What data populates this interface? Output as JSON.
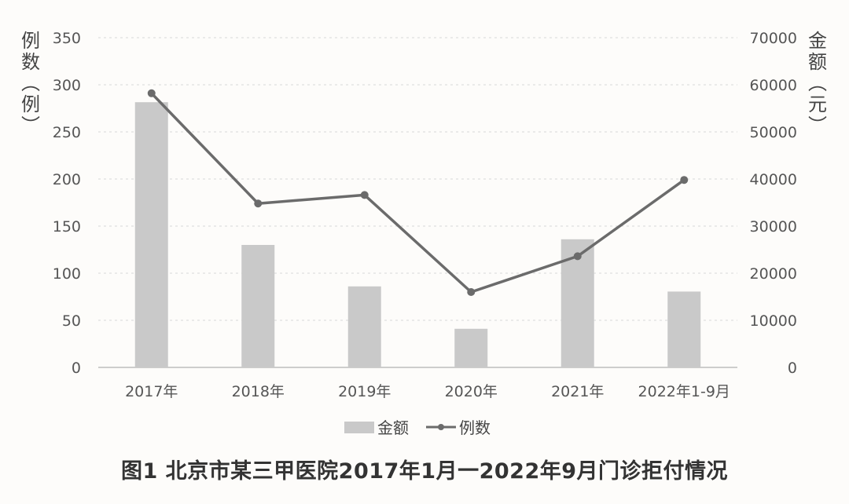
{
  "caption": "图1 北京市某三甲医院2017年1月一2022年9月门诊拒付情况",
  "chart_data": {
    "type": "bar+line",
    "categories": [
      "2017年",
      "2018年",
      "2019年",
      "2020年",
      "2021年",
      "2022年1-9月"
    ],
    "series": [
      {
        "name": "金额",
        "type": "bar",
        "axis": "right",
        "values": [
          56300,
          26000,
          17200,
          8200,
          27200,
          16100
        ],
        "color": "#c9c9c9"
      },
      {
        "name": "例数",
        "type": "line",
        "axis": "left",
        "values": [
          291,
          174,
          183,
          80,
          118,
          199
        ],
        "color": "#6b6b6b"
      }
    ],
    "left_axis": {
      "label": [
        "例",
        "数",
        "︵",
        "例",
        "︶"
      ],
      "ylim": [
        0,
        350
      ],
      "ticks": [
        0,
        50,
        100,
        150,
        200,
        250,
        300,
        350
      ]
    },
    "right_axis": {
      "label": [
        "金",
        "额",
        "︵",
        "元",
        "︶"
      ],
      "ylim": [
        0,
        70000
      ],
      "ticks": [
        0,
        10000,
        20000,
        30000,
        40000,
        50000,
        60000,
        70000
      ]
    },
    "grid": true,
    "legend_position": "bottom"
  }
}
